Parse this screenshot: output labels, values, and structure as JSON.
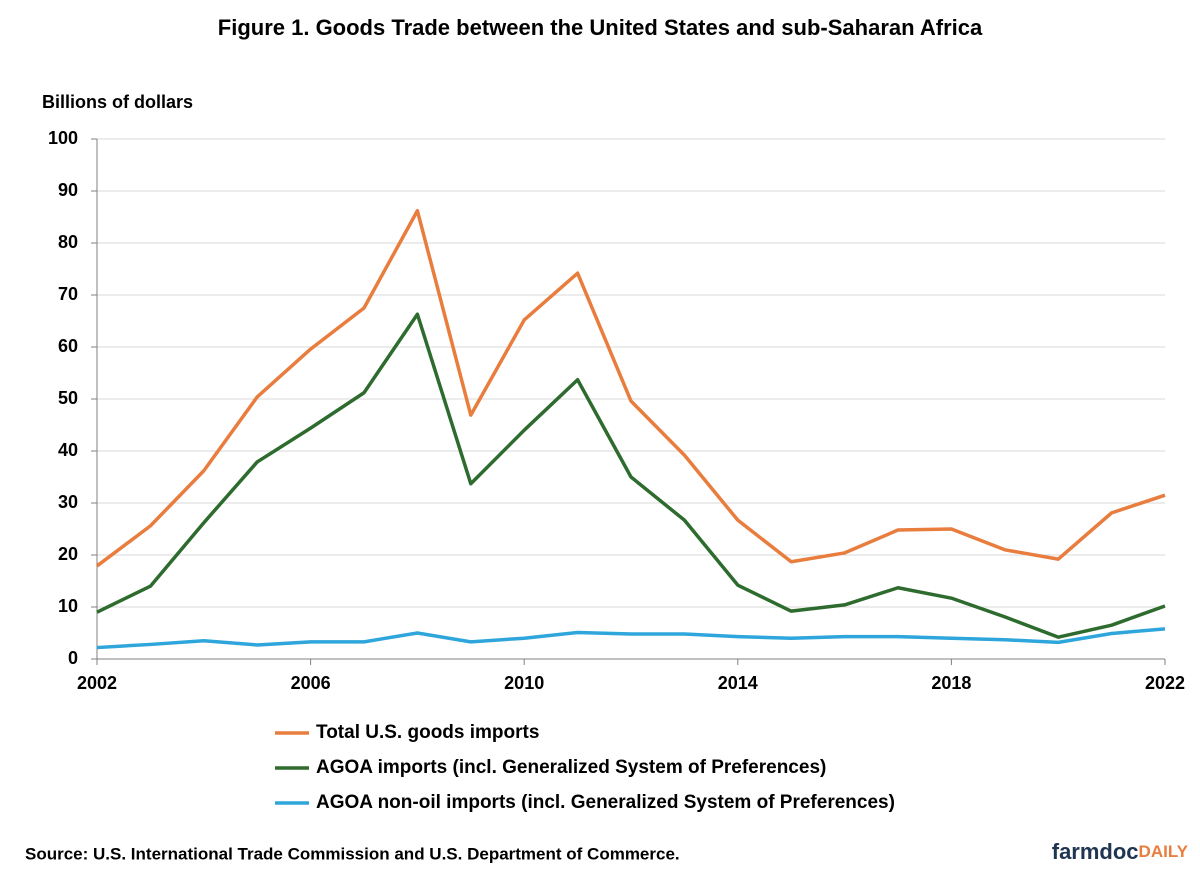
{
  "chart_data": {
    "type": "line",
    "title": "Figure 1. Goods Trade between the United States and sub-Saharan Africa",
    "y_label": "Billions of dollars",
    "source": "Source: U.S. International Trade Commission and U.S. Department of Commerce.",
    "logo": [
      "farmdoc",
      "DAILY"
    ],
    "x": [
      2002,
      2003,
      2004,
      2005,
      2006,
      2007,
      2008,
      2009,
      2010,
      2011,
      2012,
      2013,
      2014,
      2015,
      2016,
      2017,
      2018,
      2019,
      2020,
      2021,
      2022
    ],
    "xlim": [
      2002,
      2022
    ],
    "xticks": [
      2002,
      2006,
      2010,
      2014,
      2018,
      2022
    ],
    "ylim": [
      0,
      100
    ],
    "yticks": [
      0,
      10,
      20,
      30,
      40,
      50,
      60,
      70,
      80,
      90,
      100
    ],
    "grid": true,
    "legend": "bottom",
    "series": [
      {
        "name": "Total U.S. goods imports",
        "color": "#e87d3e",
        "values": [
          17.9,
          25.6,
          36.2,
          50.4,
          59.6,
          67.5,
          86.2,
          46.9,
          65.2,
          74.2,
          49.6,
          39.2,
          26.7,
          18.7,
          20.4,
          24.8,
          25.0,
          21.0,
          19.2,
          28.1,
          31.5
        ]
      },
      {
        "name": "AGOA imports (incl. Generalized System of Preferences)",
        "color": "#2e6b2e",
        "values": [
          9.0,
          14.0,
          26.2,
          37.9,
          44.4,
          51.2,
          66.3,
          33.7,
          44.0,
          53.7,
          35.0,
          26.7,
          14.2,
          9.2,
          10.4,
          13.7,
          11.7,
          8.1,
          4.2,
          6.5,
          10.2
        ]
      },
      {
        "name": "AGOA non-oil imports (incl. Generalized System of Preferences)",
        "color": "#2ea6dc",
        "values": [
          2.2,
          2.8,
          3.5,
          2.7,
          3.3,
          3.3,
          5.0,
          3.3,
          4.0,
          5.1,
          4.8,
          4.8,
          4.3,
          4.0,
          4.3,
          4.3,
          4.0,
          3.7,
          3.2,
          4.9,
          5.8
        ]
      }
    ]
  }
}
